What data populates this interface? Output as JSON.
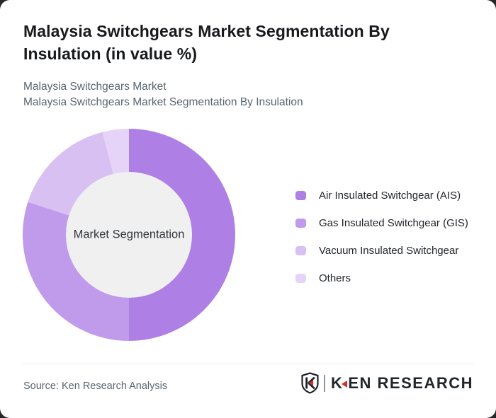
{
  "header": {
    "title": "Malaysia Switchgears Market Segmentation By Insulation (in value %)",
    "subtitle_line1": "Malaysia Switchgears Market",
    "subtitle_line2": "Malaysia Switchgears Market Segmentation By Insulation"
  },
  "chart_data": {
    "type": "pie",
    "subtype": "donut",
    "title": "Malaysia Switchgears Market Segmentation By Insulation (in value %)",
    "center_label": "Market Segmentation",
    "labels": [
      "Air Insulated Switchgear (AIS)",
      "Gas Insulated Switchgear (GIS)",
      "Vacuum Insulated Switchgear",
      "Others"
    ],
    "values": [
      50,
      30,
      16,
      4
    ],
    "unit": "%",
    "colors": [
      "#ae80e6",
      "#c09aeb",
      "#d8c0f2",
      "#e5d4f7"
    ],
    "start_angle_deg": 0,
    "direction": "clockwise",
    "inner_radius_ratio": 0.59,
    "center_fill": "#f0f0f0",
    "legend_position": "right",
    "data_labels_shown": false
  },
  "footer": {
    "source": "Source: Ken Research Analysis",
    "logo": {
      "shield_letter": "K",
      "brand_k": "K",
      "brand_rest": "EN RESEARCH",
      "accent_color": "#cf2e2e",
      "text_color": "#22262b"
    }
  }
}
